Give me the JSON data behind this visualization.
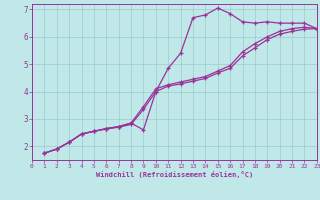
{
  "xlabel": "Windchill (Refroidissement éolien,°C)",
  "xlim": [
    0,
    23
  ],
  "ylim": [
    1.5,
    7.2
  ],
  "xtick_vals": [
    0,
    1,
    2,
    3,
    4,
    5,
    6,
    7,
    8,
    9,
    10,
    11,
    12,
    13,
    14,
    15,
    16,
    17,
    18,
    19,
    20,
    21,
    22,
    23
  ],
  "ytick_vals": [
    2,
    3,
    4,
    5,
    6,
    7
  ],
  "bg_color": "#c0e8e8",
  "line_color": "#993399",
  "grid_color": "#99cccc",
  "line1_x": [
    1,
    2,
    3,
    4,
    5,
    6,
    7,
    8,
    9,
    10,
    11,
    12,
    13,
    14,
    15,
    16,
    17,
    18,
    19,
    20,
    21,
    22,
    23
  ],
  "line1_y": [
    1.75,
    1.9,
    2.15,
    2.45,
    2.55,
    2.65,
    2.72,
    2.85,
    2.6,
    4.0,
    4.85,
    5.4,
    6.7,
    6.8,
    7.05,
    6.85,
    6.55,
    6.5,
    6.55,
    6.5,
    6.5,
    6.5,
    6.3
  ],
  "line2_x": [
    1,
    2,
    3,
    4,
    5,
    6,
    7,
    8,
    9,
    10,
    11,
    12,
    13,
    14,
    15,
    16,
    17,
    18,
    19,
    20,
    21,
    22,
    23
  ],
  "line2_y": [
    1.75,
    1.9,
    2.15,
    2.45,
    2.55,
    2.65,
    2.72,
    2.85,
    3.45,
    4.1,
    4.25,
    4.35,
    4.45,
    4.55,
    4.75,
    4.95,
    5.45,
    5.75,
    6.0,
    6.2,
    6.3,
    6.35,
    6.3
  ],
  "line3_x": [
    1,
    2,
    3,
    4,
    5,
    6,
    7,
    8,
    9,
    10,
    11,
    12,
    13,
    14,
    15,
    16,
    17,
    18,
    19,
    20,
    21,
    22,
    23
  ],
  "line3_y": [
    1.75,
    1.9,
    2.15,
    2.45,
    2.55,
    2.63,
    2.7,
    2.8,
    3.35,
    4.0,
    4.2,
    4.28,
    4.38,
    4.48,
    4.68,
    4.85,
    5.3,
    5.6,
    5.9,
    6.1,
    6.2,
    6.28,
    6.3
  ]
}
